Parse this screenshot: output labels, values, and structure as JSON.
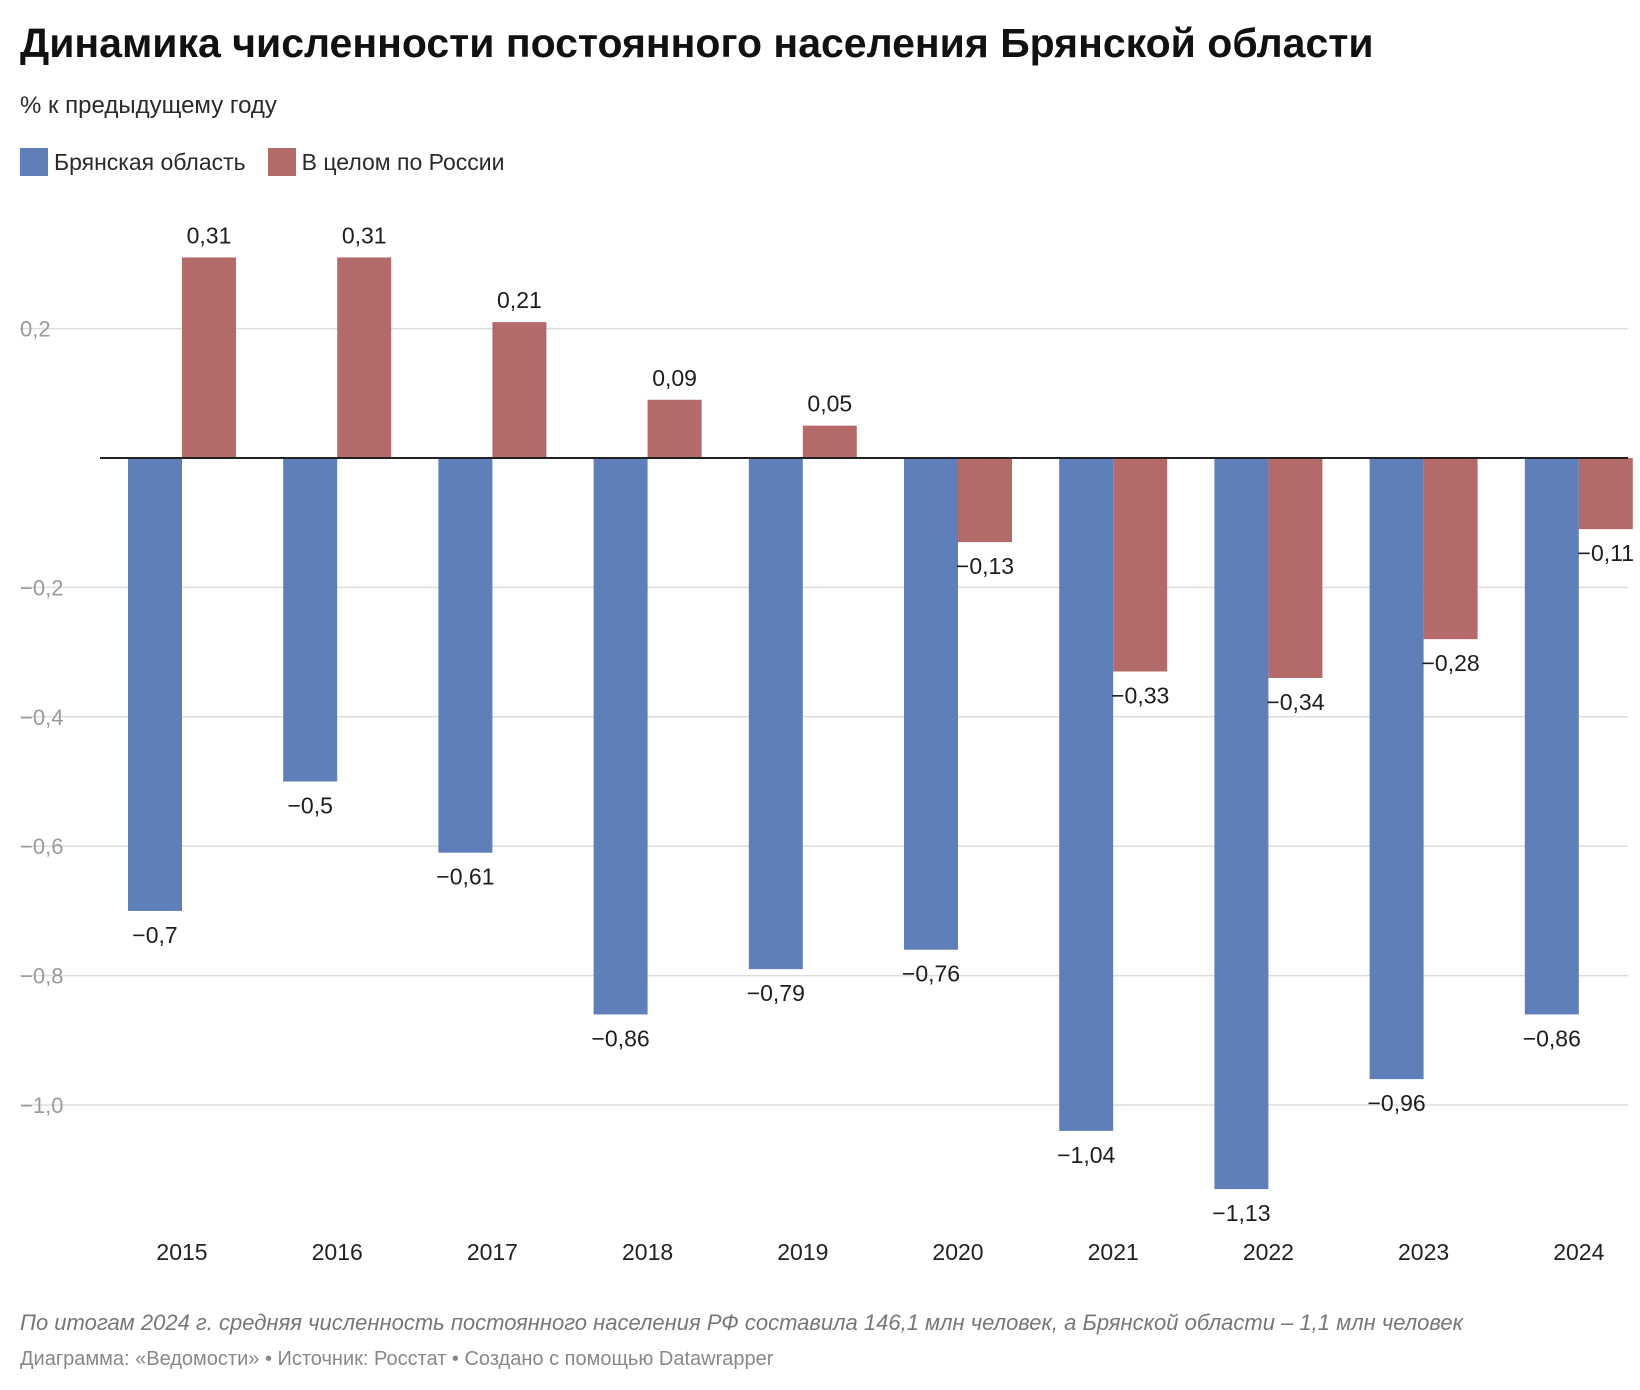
{
  "title": "Динамика численности постоянного населения Брянской области",
  "subtitle": "% к предыдущему году",
  "note": "По итогам 2024 г. средняя численность постоянного населения РФ составила 146,1 млн человек, а Брянской области – 1,1 млн человек",
  "credits": "Диаграмма: «Ведомости» • Источник: Росстат • Создано с помощью Datawrapper",
  "colors": {
    "bryansk": "#5f7fbb",
    "russia": "#b56a6a",
    "grid": "#dddddd",
    "axis": "#222222",
    "tick": "#9a9a9a"
  },
  "chart_data": {
    "type": "bar",
    "categories": [
      "2015",
      "2016",
      "2017",
      "2018",
      "2019",
      "2020",
      "2021",
      "2022",
      "2023",
      "2024"
    ],
    "series": [
      {
        "name": "Брянская область",
        "color": "#5f7fbb",
        "values": [
          -0.7,
          -0.5,
          -0.61,
          -0.86,
          -0.79,
          -0.76,
          -1.04,
          -1.13,
          -0.96,
          -0.86
        ],
        "labels": [
          "−0,7",
          "−0,5",
          "−0,61",
          "−0,86",
          "−0,79",
          "−0,76",
          "−1,04",
          "−1,13",
          "−0,96",
          "−0,86"
        ]
      },
      {
        "name": "В целом по России",
        "color": "#b56a6a",
        "values": [
          0.31,
          0.31,
          0.21,
          0.09,
          0.05,
          -0.13,
          -0.33,
          -0.34,
          -0.28,
          -0.11
        ],
        "labels": [
          "0,31",
          "0,31",
          "0,21",
          "0,09",
          "0,05",
          "−0,13",
          "−0,33",
          "−0,34",
          "−0,28",
          "−0,11"
        ]
      }
    ],
    "yticks": [
      0.2,
      -0.2,
      -0.4,
      -0.6,
      -0.8,
      -1.0
    ],
    "yticklabels": [
      "0,2",
      "−0,2",
      "−0,4",
      "−0,6",
      "−0,8",
      "−1,0"
    ],
    "ylim": [
      -1.13,
      0.31
    ],
    "grid": true,
    "legend": "top-left"
  }
}
